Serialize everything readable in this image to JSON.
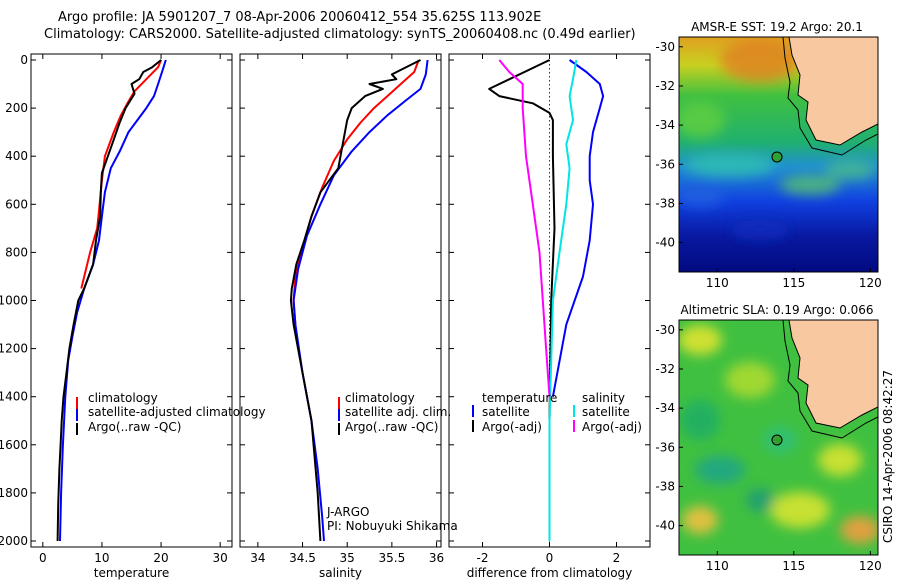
{
  "header": {
    "line1": "Argo profile: JA 5901207_7 08-Apr-2006 20060412_554 35.625S 113.902E",
    "line2": "Climatology: CARS2000. Satellite-adjusted climatology: synTS_20060408.nc (0.49d earlier)"
  },
  "colors": {
    "climatology": "#ff0000",
    "satellite": "#0000ff",
    "argo": "#000000",
    "argo_salinity_adj": "#ff00ff",
    "satellite_salinity_diff": "#00e5e5",
    "land": "#f8c8a0"
  },
  "chart_data": [
    {
      "type": "line",
      "panel": "temperature",
      "xlabel": "temperature",
      "ylabel": "",
      "xlim": [
        -2,
        32
      ],
      "ylim": [
        2000,
        0
      ],
      "xticks": [
        0,
        10,
        20,
        30
      ],
      "yticks": [
        0,
        200,
        400,
        600,
        800,
        1000,
        1200,
        1400,
        1600,
        1800,
        2000
      ],
      "legend": [
        "climatology",
        "satellite-adjusted climatology",
        "Argo(..raw -QC)"
      ],
      "legend_placement": "lower-right",
      "series": [
        {
          "name": "climatology",
          "color": "#ff0000",
          "x": [
            20.0,
            19.5,
            17.5,
            15.5,
            14.3,
            13.2,
            12.0,
            10.5,
            10.0,
            9.6,
            9.2,
            8.0,
            6.5
          ],
          "y": [
            0,
            30,
            80,
            130,
            180,
            230,
            300,
            400,
            500,
            600,
            700,
            800,
            950
          ]
        },
        {
          "name": "satellite-adjusted climatology",
          "color": "#0000ff",
          "x": [
            20.8,
            20.3,
            19.5,
            18.8,
            17.5,
            16.0,
            14.5,
            13.0,
            11.5,
            10.5,
            10.0,
            9.5,
            8.5,
            7.0,
            5.8,
            5.0,
            4.3,
            3.8,
            3.4,
            3.1,
            2.9
          ],
          "y": [
            0,
            40,
            100,
            150,
            200,
            250,
            300,
            380,
            450,
            550,
            650,
            750,
            850,
            950,
            1050,
            1150,
            1250,
            1400,
            1600,
            1800,
            2000
          ]
        },
        {
          "name": "Argo(..raw -QC)",
          "color": "#000000",
          "x": [
            20.0,
            18.5,
            17.0,
            16.3,
            15.0,
            15.5,
            14.0,
            13.0,
            12.0,
            11.0,
            10.0,
            9.8,
            9.7,
            9.0,
            8.5,
            7.0,
            6.0,
            5.2,
            4.5,
            4.0,
            3.5,
            3.2,
            3.0,
            2.8,
            2.6,
            2.5
          ],
          "y": [
            0,
            30,
            50,
            80,
            100,
            140,
            200,
            260,
            330,
            400,
            470,
            550,
            650,
            750,
            850,
            950,
            1000,
            1100,
            1200,
            1300,
            1400,
            1500,
            1600,
            1700,
            1850,
            2000
          ]
        }
      ]
    },
    {
      "type": "line",
      "panel": "salinity",
      "xlabel": "salinity",
      "ylabel": "",
      "xlim": [
        33.8,
        36.05
      ],
      "ylim": [
        2000,
        0
      ],
      "xticks": [
        34,
        34.5,
        35,
        35.5,
        36
      ],
      "legend": [
        "climatology",
        "satellite adj. clim.",
        "Argo(..raw -QC)"
      ],
      "legend_placement": "lower-right",
      "annotation": [
        "J-ARGO",
        "PI: Nobuyuki Shikama"
      ],
      "series": [
        {
          "name": "climatology",
          "color": "#ff0000",
          "x": [
            35.8,
            35.75,
            35.6,
            35.45,
            35.3,
            35.15,
            35.0,
            34.85,
            34.72,
            34.6,
            34.5,
            34.42,
            34.4,
            34.42
          ],
          "y": [
            0,
            50,
            100,
            150,
            200,
            260,
            330,
            420,
            530,
            650,
            780,
            900,
            1000,
            1100
          ]
        },
        {
          "name": "satellite adj. clim.",
          "color": "#0000ff",
          "x": [
            35.9,
            35.88,
            35.82,
            35.65,
            35.45,
            35.25,
            35.05,
            34.85,
            34.7,
            34.55,
            34.45,
            34.4,
            34.42,
            34.5,
            34.6,
            34.67,
            34.72,
            34.74
          ],
          "y": [
            0,
            60,
            120,
            170,
            230,
            300,
            380,
            480,
            600,
            730,
            870,
            1000,
            1100,
            1300,
            1500,
            1700,
            1900,
            2000
          ]
        },
        {
          "name": "Argo(..raw -QC)",
          "color": "#000000",
          "x": [
            35.82,
            35.5,
            35.55,
            35.25,
            35.4,
            35.2,
            35.05,
            35.0,
            34.95,
            34.9,
            34.8,
            34.7,
            34.6,
            34.52,
            34.43,
            34.38,
            34.37,
            34.4,
            34.5,
            34.6,
            34.67,
            34.7
          ],
          "y": [
            0,
            60,
            80,
            100,
            120,
            150,
            200,
            250,
            350,
            450,
            500,
            550,
            650,
            750,
            850,
            950,
            1000,
            1100,
            1300,
            1500,
            1800,
            2000
          ]
        }
      ]
    },
    {
      "type": "line",
      "panel": "difference",
      "xlabel": "difference from climatology",
      "ylabel": "",
      "xlim": [
        -3,
        3
      ],
      "ylim": [
        2000,
        0
      ],
      "xticks": [
        -2,
        0,
        2
      ],
      "legend": [
        "temperature",
        "satellite",
        "Argo(-adj)",
        "salinity",
        "satellite",
        "Argo(-adj)"
      ],
      "legend_placement": "lower-center",
      "series": [
        {
          "name": "temperature satellite",
          "color": "#0000ff",
          "x": [
            0.6,
            1.1,
            1.5,
            1.6,
            1.5,
            1.3,
            1.2,
            1.2,
            1.3,
            1.2,
            1.0,
            0.5,
            0.1
          ],
          "y": [
            0,
            50,
            100,
            150,
            200,
            300,
            400,
            500,
            600,
            750,
            900,
            1100,
            1400
          ]
        },
        {
          "name": "temperature Argo(-adj)",
          "color": "#000000",
          "x": [
            0.0,
            -1.8,
            -1.5,
            -0.5,
            0.0,
            0.1,
            0.1,
            0.15,
            0.05,
            0.0,
            0.0
          ],
          "y": [
            0,
            120,
            150,
            180,
            220,
            250,
            400,
            700,
            1000,
            1500,
            2000
          ]
        },
        {
          "name": "salinity satellite",
          "color": "#00e5e5",
          "x": [
            0.8,
            0.7,
            0.6,
            0.7,
            0.5,
            0.6,
            0.5,
            0.3,
            0.1,
            0.0,
            0.0
          ],
          "y": [
            0,
            80,
            150,
            250,
            350,
            450,
            600,
            800,
            1000,
            1500,
            2000
          ]
        },
        {
          "name": "salinity Argo(-adj)",
          "color": "#ff00ff",
          "x": [
            -1.5,
            -1.2,
            -0.8,
            -0.8,
            -0.7,
            -0.5,
            -0.3,
            -0.2,
            -0.1,
            0.0
          ],
          "y": [
            0,
            50,
            100,
            200,
            400,
            600,
            800,
            1000,
            1200,
            1400
          ]
        }
      ]
    }
  ],
  "maps": [
    {
      "title": "AMSR-E SST: 19.2 Argo: 20.1",
      "xticks": [
        110,
        115,
        120
      ],
      "yticks": [
        -30,
        -32,
        -34,
        -36,
        -38,
        -40
      ],
      "xlim": [
        107.5,
        120.5
      ],
      "ylim": [
        -41.5,
        -29.5
      ],
      "argo_position": [
        113.902,
        -35.625
      ]
    },
    {
      "title": "Altimetric SLA: 0.19 Argo: 0.066",
      "xticks": [
        110,
        115,
        120
      ],
      "yticks": [
        -30,
        -32,
        -34,
        -36,
        -38,
        -40
      ],
      "xlim": [
        107.5,
        120.5
      ],
      "ylim": [
        -41.5,
        -29.5
      ],
      "argo_position": [
        113.902,
        -35.625
      ]
    }
  ],
  "side_label": "CSIRO 14-Apr-2006 08:42:27"
}
